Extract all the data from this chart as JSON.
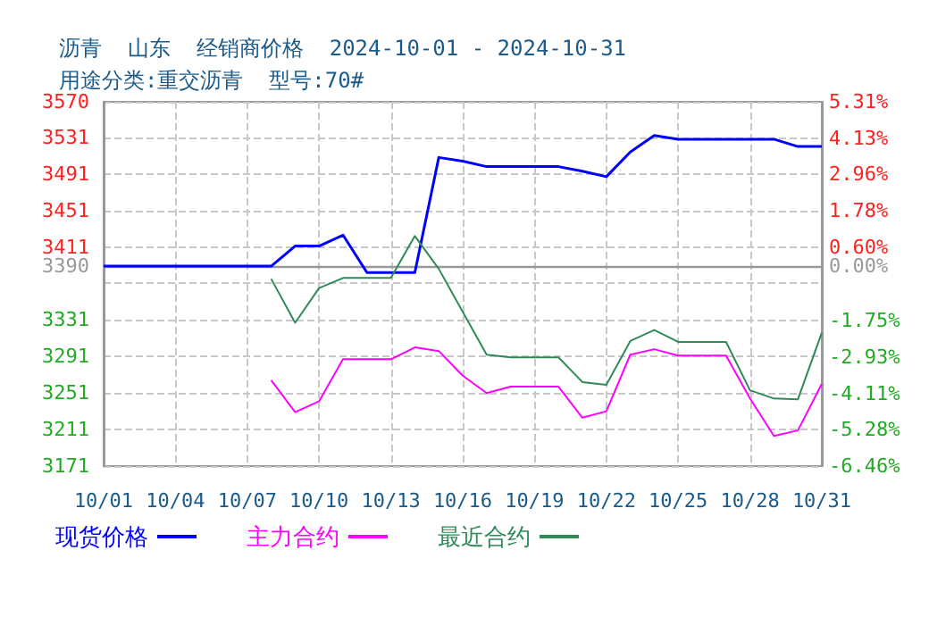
{
  "chart_data": {
    "type": "line",
    "title": "沥青  山东  经销商价格  2024-10-01 - 2024-10-31",
    "subtitle": "用途分类:重交沥青  型号:70#",
    "x": [
      "2024-10-01",
      "2024-10-02",
      "2024-10-03",
      "2024-10-04",
      "2024-10-05",
      "2024-10-06",
      "2024-10-07",
      "2024-10-08",
      "2024-10-09",
      "2024-10-10",
      "2024-10-11",
      "2024-10-12",
      "2024-10-13",
      "2024-10-14",
      "2024-10-15",
      "2024-10-16",
      "2024-10-17",
      "2024-10-18",
      "2024-10-19",
      "2024-10-20",
      "2024-10-21",
      "2024-10-22",
      "2024-10-23",
      "2024-10-24",
      "2024-10-25",
      "2024-10-26",
      "2024-10-27",
      "2024-10-28",
      "2024-10-29",
      "2024-10-30",
      "2024-10-31"
    ],
    "series": [
      {
        "name": "现货价格",
        "color": "#0000ff",
        "values": [
          3390,
          3390,
          3390,
          3390,
          3390,
          3390,
          3390,
          3390,
          3412,
          3412,
          3424,
          3383,
          3383,
          3383,
          3509,
          3505,
          3499,
          3499,
          3499,
          3499,
          3494,
          3488,
          3515,
          3533,
          3529,
          3529,
          3529,
          3529,
          3529,
          3521,
          3521
        ]
      },
      {
        "name": "主力合约",
        "color": "#ff00ff",
        "values": [
          null,
          null,
          null,
          null,
          null,
          null,
          null,
          3265,
          3230,
          3242,
          3288,
          3288,
          3288,
          3301,
          3297,
          3270,
          3251,
          3258,
          3258,
          3258,
          3224,
          3231,
          3293,
          3299,
          3292,
          3292,
          3292,
          3245,
          3204,
          3210,
          3261
        ]
      },
      {
        "name": "最近合约",
        "color": "#2e8b57",
        "values": [
          null,
          null,
          null,
          null,
          null,
          null,
          null,
          3376,
          3328,
          3366,
          3377,
          3377,
          3377,
          3423,
          3387,
          3340,
          3293,
          3290,
          3290,
          3290,
          3263,
          3260,
          3308,
          3320,
          3307,
          3307,
          3307,
          3254,
          3245,
          3244,
          3317
        ]
      }
    ],
    "xlim": [
      "2024-10-01",
      "2024-10-31"
    ],
    "xticks": [
      {
        "value": "2024-10-01",
        "label": "10/01"
      },
      {
        "value": "2024-10-04",
        "label": "10/04"
      },
      {
        "value": "2024-10-07",
        "label": "10/07"
      },
      {
        "value": "2024-10-10",
        "label": "10/10"
      },
      {
        "value": "2024-10-13",
        "label": "10/13"
      },
      {
        "value": "2024-10-16",
        "label": "10/16"
      },
      {
        "value": "2024-10-19",
        "label": "10/19"
      },
      {
        "value": "2024-10-22",
        "label": "10/22"
      },
      {
        "value": "2024-10-25",
        "label": "10/25"
      },
      {
        "value": "2024-10-28",
        "label": "10/28"
      },
      {
        "value": "2024-10-31",
        "label": "10/31"
      }
    ],
    "ylim": [
      3171,
      3570
    ],
    "yticks": [
      3171,
      3211,
      3251,
      3291,
      3331,
      {
        "value": 3371,
        "label": null
      },
      3390,
      3411,
      3451,
      3491,
      3531,
      3570
    ],
    "y2lim": [
      -6.46,
      5.31
    ],
    "y2ticks": [
      {
        "value": -6.46,
        "label": "-6.46%"
      },
      {
        "value": -5.28,
        "label": "-5.28%"
      },
      {
        "value": -4.11,
        "label": "-4.11%"
      },
      {
        "value": -2.93,
        "label": "-2.93%"
      },
      {
        "value": -1.75,
        "label": "-1.75%"
      },
      {
        "value": 0,
        "label": "0.00%"
      },
      {
        "value": 0.6,
        "label": "0.60%"
      },
      {
        "value": 1.78,
        "label": "1.78%"
      },
      {
        "value": 2.96,
        "label": "2.96%"
      },
      {
        "value": 4.13,
        "label": "4.13%"
      },
      {
        "value": 5.31,
        "label": "5.31%"
      }
    ],
    "ref_lines": [
      {
        "axis": "y",
        "value": 3390,
        "color": "#999999",
        "line_style": "solid"
      }
    ],
    "grid": true,
    "legend": "bottom",
    "marker": "none",
    "line_style": "solid"
  }
}
